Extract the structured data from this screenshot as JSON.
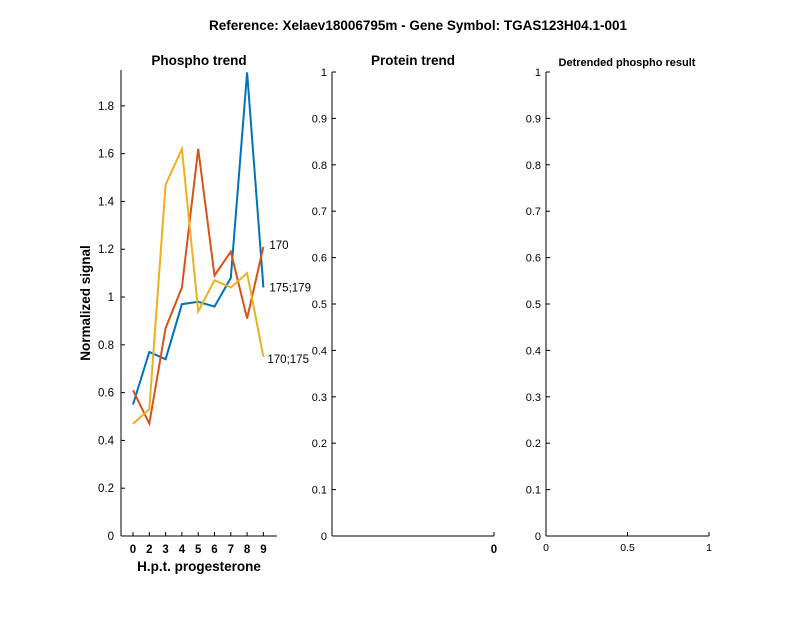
{
  "figure_title": "Reference:  Xelaev18006795m - Gene Symbol:  TGAS123H04.1-001",
  "chart_data": [
    {
      "type": "line",
      "title": "Phospho trend",
      "xlabel": "H.p.t. progesterone",
      "ylabel": "Normalized signal",
      "categories": [
        "0",
        "2",
        "3",
        "4",
        "5",
        "6",
        "7",
        "8",
        "9"
      ],
      "ylim": [
        0,
        1.95
      ],
      "yticks": [
        "0",
        "0.2",
        "0.4",
        "0.6",
        "0.8",
        "1",
        "1.2",
        "1.4",
        "1.6",
        "1.8"
      ],
      "ytick_values": [
        0,
        0.2,
        0.4,
        0.6,
        0.8,
        1,
        1.2,
        1.4,
        1.6,
        1.8
      ],
      "series": [
        {
          "name": "175;179",
          "color": "#0072BD",
          "values": [
            0.55,
            0.77,
            0.74,
            0.97,
            0.98,
            0.96,
            1.08,
            1.94,
            1.04
          ]
        },
        {
          "name": "170",
          "color": "#D95319",
          "values": [
            0.61,
            0.47,
            0.87,
            1.04,
            1.62,
            1.09,
            1.19,
            0.91,
            1.21
          ]
        },
        {
          "name": "170;175",
          "color": "#EDB120",
          "values": [
            0.47,
            0.53,
            1.47,
            1.62,
            0.94,
            1.07,
            1.04,
            1.1,
            0.75
          ]
        }
      ]
    },
    {
      "type": "line",
      "title": "Protein trend",
      "ylim": [
        0,
        1
      ],
      "yticks": [
        "0",
        "0.1",
        "0.2",
        "0.3",
        "0.4",
        "0.5",
        "0.6",
        "0.7",
        "0.8",
        "0.9",
        "1"
      ],
      "xticks": [
        "0"
      ],
      "series": []
    },
    {
      "type": "line",
      "title": "Detrended phospho result",
      "ylim": [
        0,
        1
      ],
      "xlim": [
        0,
        1
      ],
      "yticks": [
        "0",
        "0.1",
        "0.2",
        "0.3",
        "0.4",
        "0.5",
        "0.6",
        "0.7",
        "0.8",
        "0.9",
        "1"
      ],
      "xticks": [
        "0",
        "0.5",
        "1"
      ],
      "series": []
    }
  ]
}
